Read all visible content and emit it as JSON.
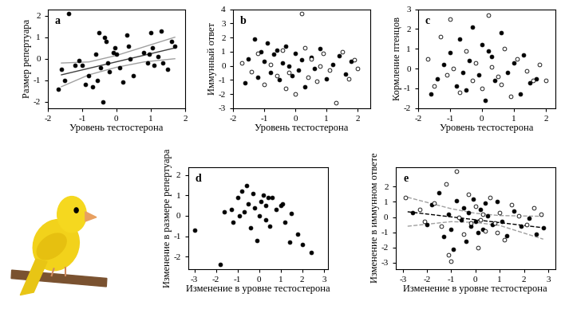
{
  "chart_data": [
    {
      "type": "scatter",
      "panel_label": "a",
      "x_label": "Уровень тестостерона",
      "y_label": "Размер репертуара",
      "xlim": [
        -2,
        2
      ],
      "xticks": [
        -2,
        -1,
        0,
        1,
        2
      ],
      "ylim": [
        -2.3,
        2.3
      ],
      "yticks": [
        -2,
        -1,
        0,
        1,
        2
      ],
      "series": [
        {
          "color": "#000000",
          "marker": "o",
          "x": [
            -1.4,
            -1.6,
            -1.7,
            -1.5,
            -1.2,
            -1.1,
            -1.0,
            -0.9,
            -0.8,
            -0.7,
            -0.6,
            -0.55,
            -0.5,
            -0.45,
            -0.4,
            -0.35,
            -0.3,
            -0.25,
            -0.2,
            -0.1,
            -0.05,
            0.0,
            0.1,
            0.2,
            0.3,
            0.35,
            0.4,
            0.5,
            0.8,
            0.9,
            1.0,
            1.05,
            1.1,
            1.2,
            1.3,
            1.35,
            1.6,
            1.7,
            0.95,
            1.5
          ],
          "y": [
            2.1,
            -0.5,
            -1.4,
            -1.0,
            -0.3,
            -0.1,
            -0.3,
            -1.2,
            -0.8,
            -1.3,
            0.2,
            -1.0,
            1.2,
            -0.4,
            -2.0,
            1.0,
            0.8,
            -0.2,
            -0.6,
            0.3,
            0.5,
            0.2,
            -0.4,
            -1.1,
            1.1,
            0.6,
            0.0,
            -0.8,
            0.3,
            -0.2,
            1.2,
            0.5,
            -0.3,
            0.1,
            1.3,
            -0.2,
            0.8,
            0.6,
            0.2,
            -0.5
          ]
        }
      ],
      "fit_lines": [
        {
          "color": "#404040",
          "line_style": "solid",
          "x": [
            -1.6,
            1.7
          ],
          "y": [
            -0.75,
            0.5
          ]
        },
        {
          "color": "#a0a0a0",
          "line_style": "solid",
          "x": [
            -1.6,
            -0.8,
            0.0,
            0.8,
            1.7
          ],
          "y": [
            -0.2,
            -0.15,
            0.15,
            0.55,
            1.0
          ]
        },
        {
          "color": "#a0a0a0",
          "line_style": "solid",
          "x": [
            -1.6,
            -0.8,
            0.0,
            0.8,
            1.7
          ],
          "y": [
            -1.3,
            -0.75,
            -0.4,
            -0.15,
            0.0
          ]
        }
      ]
    },
    {
      "type": "scatter",
      "panel_label": "b",
      "x_label": "Уровень тестостерона",
      "y_label": "Иммунный ответ",
      "xlim": [
        -2,
        2.4
      ],
      "xticks": [
        -2,
        -1,
        0,
        1,
        2
      ],
      "ylim": [
        -3,
        4
      ],
      "yticks": [
        -3,
        -2,
        -1,
        0,
        1,
        2,
        3,
        4
      ],
      "series": [
        {
          "color": "#000000",
          "marker": "o",
          "x": [
            -1.6,
            -1.5,
            -1.3,
            -1.2,
            -1.1,
            -1.0,
            -0.9,
            -0.8,
            -0.7,
            -0.6,
            -0.5,
            -0.4,
            -0.3,
            -0.2,
            -0.1,
            0.0,
            0.1,
            0.2,
            0.3,
            0.5,
            0.6,
            0.8,
            1.0,
            1.2,
            1.4,
            1.6,
            1.8
          ],
          "y": [
            -1.2,
            0.5,
            1.9,
            -0.8,
            1.0,
            0.3,
            1.6,
            -0.5,
            0.8,
            1.1,
            -1.0,
            0.2,
            1.4,
            0.0,
            -0.7,
            0.9,
            -0.3,
            0.4,
            -1.5,
            0.6,
            -0.2,
            1.2,
            -0.9,
            0.1,
            0.7,
            -0.6,
            0.3
          ]
        },
        {
          "color": "#ffffff",
          "marker": "o",
          "x": [
            -1.7,
            -1.4,
            -1.2,
            -1.0,
            -0.8,
            -0.6,
            -0.4,
            -0.2,
            0.0,
            0.2,
            0.3,
            0.4,
            0.5,
            0.7,
            0.9,
            1.1,
            1.3,
            1.5,
            1.7,
            1.9,
            2.0,
            -0.3,
            0.8
          ],
          "y": [
            0.2,
            -0.4,
            0.9,
            -1.3,
            0.1,
            -0.7,
            1.1,
            -0.5,
            -2.0,
            3.7,
            1.3,
            -0.8,
            0.5,
            -1.1,
            0.9,
            -0.3,
            -2.6,
            1.0,
            -0.9,
            0.4,
            -0.2,
            -1.6,
            0.0
          ]
        }
      ]
    },
    {
      "type": "scatter",
      "panel_label": "c",
      "x_label": "Уровень тестостерона",
      "y_label": "Кормление птенцов",
      "xlim": [
        -2,
        2.3
      ],
      "xticks": [
        -2,
        -1,
        0,
        1,
        2
      ],
      "ylim": [
        -2,
        3
      ],
      "yticks": [
        -2,
        -1,
        0,
        1,
        2,
        3
      ],
      "series": [
        {
          "color": "#000000",
          "marker": "o",
          "x": [
            -1.6,
            -1.4,
            -1.2,
            -1.0,
            -0.8,
            -0.7,
            -0.5,
            -0.4,
            -0.3,
            -0.1,
            0.0,
            0.1,
            0.3,
            0.4,
            0.6,
            0.8,
            1.0,
            1.2,
            1.3,
            1.5,
            1.7,
            -0.6,
            0.2
          ],
          "y": [
            -1.3,
            -0.5,
            0.2,
            0.8,
            -0.9,
            1.5,
            -1.1,
            0.4,
            2.1,
            -0.3,
            1.2,
            -1.6,
            0.6,
            -0.6,
            1.8,
            -0.2,
            0.3,
            -1.3,
            0.7,
            -0.7,
            -0.5,
            -0.2,
            0.9
          ]
        },
        {
          "color": "#ffffff",
          "marker": "o",
          "x": [
            -1.7,
            -1.5,
            -1.3,
            -1.1,
            -0.9,
            -0.7,
            -0.5,
            -0.3,
            -0.2,
            0.0,
            0.2,
            0.3,
            0.5,
            0.7,
            0.9,
            1.1,
            1.4,
            1.6,
            1.8,
            2.0,
            -1.0,
            0.6
          ],
          "y": [
            0.5,
            -0.9,
            1.6,
            -0.3,
            0.0,
            -1.2,
            0.9,
            -0.6,
            0.3,
            -1.0,
            2.7,
            0.1,
            -0.4,
            1.0,
            -1.4,
            0.5,
            -0.1,
            -0.6,
            0.2,
            -0.6,
            2.5,
            -0.8
          ]
        }
      ]
    },
    {
      "type": "scatter",
      "panel_label": "d",
      "x_label": "Изменение в уровне тестостерона",
      "y_label": "Изменение в размере репертуара",
      "xlim": [
        -3.3,
        3.2
      ],
      "xticks": [
        -3,
        -2,
        -1,
        0,
        1,
        2,
        3
      ],
      "ylim": [
        -2.6,
        2.4
      ],
      "yticks": [
        -2,
        -1,
        0,
        1,
        2
      ],
      "series": [
        {
          "color": "#000000",
          "marker": "o",
          "x": [
            -3.0,
            -1.8,
            -1.6,
            -1.3,
            -1.2,
            -1.0,
            -0.9,
            -0.8,
            -0.6,
            -0.5,
            -0.4,
            -0.3,
            -0.2,
            -0.1,
            0.0,
            0.1,
            0.2,
            0.3,
            0.4,
            0.5,
            0.6,
            0.8,
            1.0,
            1.2,
            1.4,
            1.5,
            1.8,
            2.0,
            2.4,
            -0.7,
            0.3,
            1.1
          ],
          "y": [
            -0.7,
            -2.4,
            0.2,
            0.3,
            -0.3,
            0.9,
            0.0,
            1.2,
            1.5,
            0.6,
            -0.6,
            1.1,
            0.4,
            -1.2,
            0.0,
            0.7,
            1.0,
            0.5,
            0.9,
            -0.5,
            0.9,
            0.3,
            0.5,
            -0.3,
            -1.3,
            0.1,
            -0.9,
            -1.4,
            -1.8,
            0.2,
            -0.2,
            0.6
          ]
        }
      ]
    },
    {
      "type": "scatter",
      "panel_label": "e",
      "x_label": "Изменение в уровне тестостерона",
      "y_label": "Изменение в иммунном ответе",
      "xlim": [
        -3.3,
        3.3
      ],
      "xticks": [
        -3,
        -2,
        -1,
        0,
        1,
        2,
        3
      ],
      "ylim": [
        -3.4,
        3.3
      ],
      "yticks": [
        -3,
        -2,
        -1,
        0,
        1,
        2
      ],
      "series": [
        {
          "color": "#000000",
          "marker": "o",
          "x": [
            -2.6,
            -2.0,
            -1.8,
            -1.5,
            -1.3,
            -1.1,
            -1.0,
            -0.8,
            -0.6,
            -0.5,
            -0.4,
            -0.3,
            -0.2,
            -0.1,
            0.0,
            0.1,
            0.2,
            0.3,
            0.5,
            0.7,
            0.9,
            1.1,
            1.3,
            1.6,
            1.9,
            2.2,
            2.5,
            2.8,
            -0.9,
            0.4
          ],
          "y": [
            0.3,
            -0.5,
            0.8,
            1.6,
            -1.3,
            0.2,
            -0.8,
            1.1,
            -0.2,
            0.6,
            -1.6,
            0.3,
            -0.6,
            1.2,
            -0.3,
            -1.0,
            0.5,
            -0.8,
            0.1,
            -0.5,
            1.0,
            -0.3,
            -1.2,
            0.4,
            -0.6,
            -0.1,
            -1.1,
            -0.7,
            -2.1,
            0.9
          ]
        },
        {
          "color": "#ffffff",
          "marker": "o",
          "x": [
            -2.9,
            -2.3,
            -2.1,
            -1.7,
            -1.4,
            -1.2,
            -1.0,
            -0.8,
            -0.7,
            -0.5,
            -0.3,
            -0.2,
            0.0,
            0.1,
            0.3,
            0.4,
            0.6,
            0.8,
            1.0,
            1.2,
            1.5,
            1.8,
            2.1,
            2.4,
            2.7,
            -1.1,
            0.2,
            0.9
          ],
          "y": [
            1.3,
            0.5,
            -0.3,
            0.9,
            -0.6,
            2.2,
            -2.9,
            3.0,
            0.0,
            -1.1,
            1.5,
            -0.4,
            0.7,
            -2.0,
            0.2,
            -0.9,
            1.3,
            -0.4,
            0.3,
            -1.5,
            0.8,
            0.1,
            -0.5,
            0.6,
            0.2,
            -2.5,
            -0.2,
            -1.0
          ]
        }
      ],
      "fit_lines": [
        {
          "color": "#000000",
          "line_style": "dashed",
          "x": [
            -2.8,
            2.8
          ],
          "y": [
            0.35,
            -0.7
          ]
        },
        {
          "color": "#a0a0a0",
          "line_style": "dashed",
          "x": [
            -2.8,
            -1.0,
            0.0,
            1.0,
            2.8
          ],
          "y": [
            1.3,
            0.55,
            0.25,
            0.1,
            0.05
          ]
        },
        {
          "color": "#a0a0a0",
          "line_style": "dashed",
          "x": [
            -2.8,
            -1.0,
            0.0,
            1.0,
            2.8
          ],
          "y": [
            -0.6,
            -0.3,
            -0.35,
            -0.55,
            -1.45
          ]
        }
      ]
    }
  ]
}
